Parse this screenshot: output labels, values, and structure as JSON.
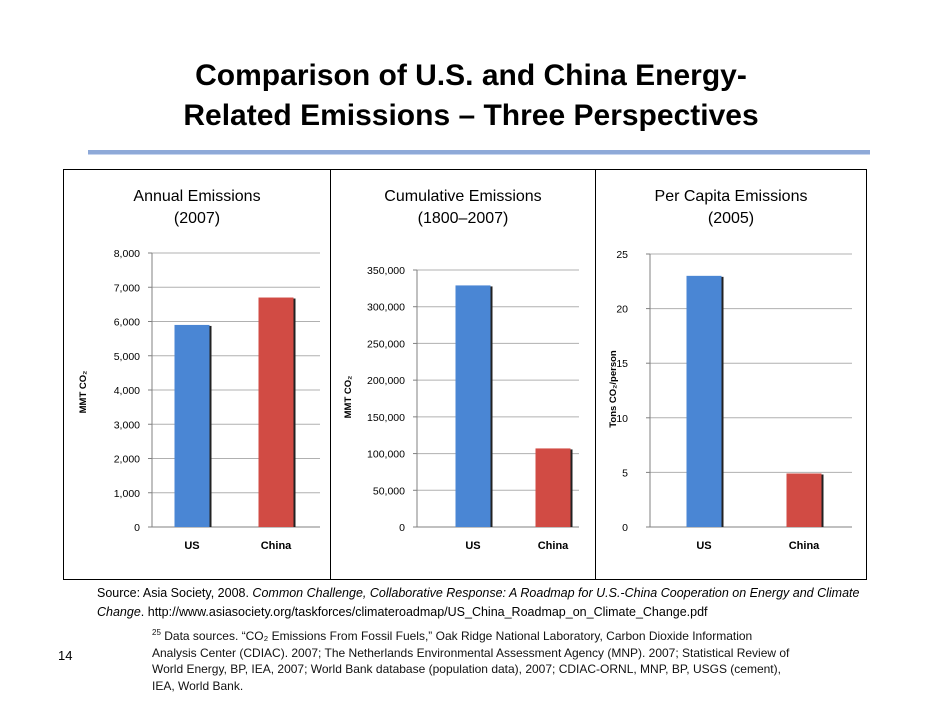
{
  "slide": {
    "title_line1": "Comparison of U.S. and China Energy-",
    "title_line2": "Related Emissions – Three Perspectives",
    "page_number": "14"
  },
  "source": {
    "prefix": "Source: Asia Society, 2008. ",
    "italic": "Common Challenge, Collaborative Response: A Roadmap for U.S.-China Cooperation on Energy and Climate Change",
    "suffix": ". http://www.asiasociety.org/taskforces/climateroadmap/US_China_Roadmap_on_Climate_Change.pdf"
  },
  "footnote": {
    "number": "25",
    "text": " Data sources. “CO₂ Emissions From Fossil Fuels,” Oak Ridge National Laboratory, Carbon Dioxide Information Analysis Center (CDIAC). 2007; The Netherlands Environmental Assessment Agency (MNP). 2007; Statistical Review of World Energy, BP, IEA, 2007; World Bank database (population data), 2007; CDIAC-ORNL, MNP, BP, USGS (cement), IEA, World Bank."
  },
  "colors": {
    "us": "#4a86d4",
    "china": "#d14b44",
    "grid": "#b0b0b0",
    "title_rule": "#8ea9d8"
  },
  "chart_data": [
    {
      "type": "bar",
      "title_line1": "Annual Emissions",
      "title_line2": "(2007)",
      "ylabel": "MMT CO₂",
      "categories": [
        "US",
        "China"
      ],
      "values": [
        5900,
        6700
      ],
      "ylim": [
        0,
        8000
      ],
      "yticks": [
        0,
        1000,
        2000,
        3000,
        4000,
        5000,
        6000,
        7000,
        8000
      ],
      "ytick_labels": [
        "0",
        "1,000",
        "2,000",
        "3,000",
        "4,000",
        "5,000",
        "6,000",
        "7,000",
        "8,000"
      ],
      "grid": true,
      "tick_side": "left"
    },
    {
      "type": "bar",
      "title_line1": "Cumulative Emissions",
      "title_line2": "(1800–2007)",
      "ylabel": "MMT CO₂",
      "categories": [
        "US",
        "China"
      ],
      "values": [
        329000,
        107000
      ],
      "ylim": [
        0,
        350000
      ],
      "yticks": [
        0,
        50000,
        100000,
        150000,
        200000,
        250000,
        300000,
        350000
      ],
      "ytick_labels": [
        "0",
        "50,000",
        "100,000",
        "150,000",
        "200,000",
        "250,000",
        "300,000",
        "350,000"
      ],
      "grid": true,
      "tick_side": "left"
    },
    {
      "type": "bar",
      "title_line1": "Per Capita Emissions",
      "title_line2": "(2005)",
      "ylabel": "Tons CO₂/person",
      "categories": [
        "US",
        "China"
      ],
      "values": [
        23,
        4.9
      ],
      "ylim": [
        0,
        25
      ],
      "yticks": [
        0,
        5,
        10,
        15,
        20,
        25
      ],
      "ytick_labels": [
        "0",
        "5",
        "10",
        "15",
        "20",
        "25"
      ],
      "grid": true,
      "tick_side": "left"
    }
  ]
}
